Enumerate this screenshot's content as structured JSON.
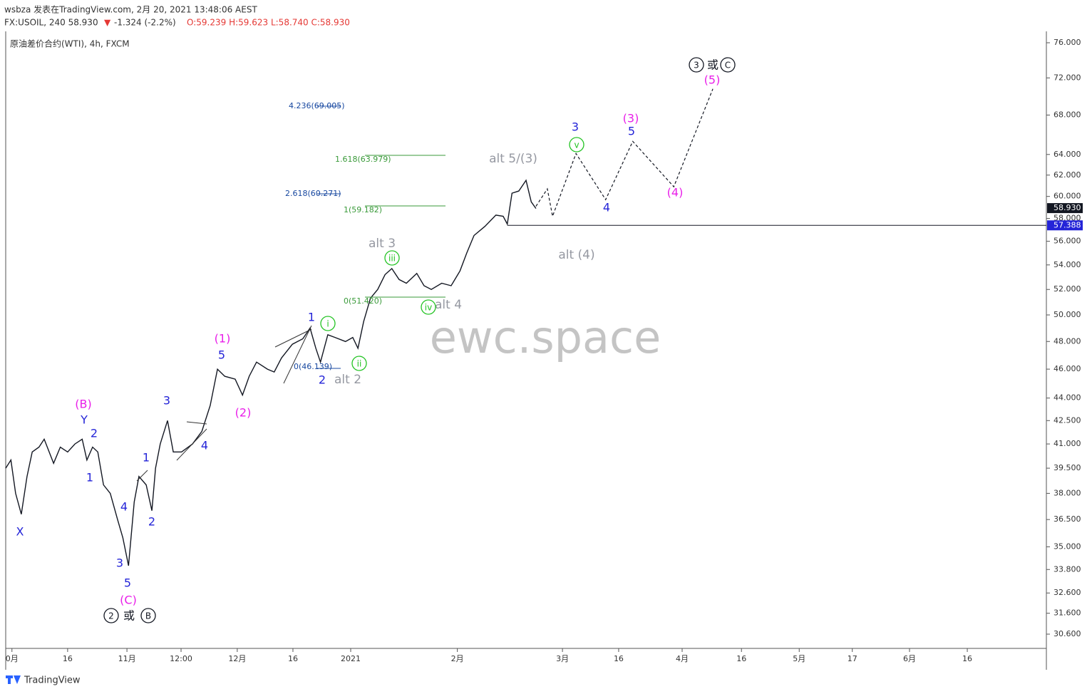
{
  "header": {
    "author_line": "wsbza 发表在TradingView.com, 2月 20, 2021 13:48:06 AEST",
    "symbol": "FX:USOIL, 240 58.930",
    "arrow": "▼",
    "change": "-1.324 (-2.2%)",
    "ohlc": "O:59.239 H:59.623 L:58.740 C:58.930"
  },
  "chart_data": {
    "type": "line",
    "legend": "原油差价合约(WTI), 4h, FXCM",
    "watermark": "ewc.space",
    "log_scale": true,
    "color": "#131722",
    "ylim": [
      30.6,
      76
    ],
    "yticks": [
      {
        "value": 76,
        "label": "76.000"
      },
      {
        "value": 72,
        "label": "72.000"
      },
      {
        "value": 68,
        "label": "68.000"
      },
      {
        "value": 64,
        "label": "64.000"
      },
      {
        "value": 62,
        "label": "62.000"
      },
      {
        "value": 60,
        "label": "60.000"
      },
      {
        "value": 58,
        "label": "58.000"
      },
      {
        "value": 56,
        "label": "56.000"
      },
      {
        "value": 54,
        "label": "54.000"
      },
      {
        "value": 52,
        "label": "52.000"
      },
      {
        "value": 50,
        "label": "50.000"
      },
      {
        "value": 48,
        "label": "48.000"
      },
      {
        "value": 46,
        "label": "46.000"
      },
      {
        "value": 44,
        "label": "44.000"
      },
      {
        "value": 42.5,
        "label": "42.500"
      },
      {
        "value": 41,
        "label": "41.000"
      },
      {
        "value": 39.5,
        "label": "39.500"
      },
      {
        "value": 38,
        "label": "38.000"
      },
      {
        "value": 36.5,
        "label": "36.500"
      },
      {
        "value": 35,
        "label": "35.000"
      },
      {
        "value": 33.8,
        "label": "33.800"
      },
      {
        "value": 32.6,
        "label": "32.600"
      },
      {
        "value": 31.6,
        "label": "31.600"
      },
      {
        "value": 30.6,
        "label": "30.600"
      }
    ],
    "xlim": [
      0,
      200
    ],
    "xticks": [
      {
        "value": 1.2,
        "label": "0月"
      },
      {
        "value": 11.9,
        "label": "16"
      },
      {
        "value": 23.3,
        "label": "11月"
      },
      {
        "value": 33.7,
        "label": "12:00"
      },
      {
        "value": 44.5,
        "label": "12月"
      },
      {
        "value": 55.2,
        "label": "16"
      },
      {
        "value": 66.3,
        "label": "2021"
      },
      {
        "value": 86.8,
        "label": "2月"
      },
      {
        "value": 107,
        "label": "3月"
      },
      {
        "value": 117.8,
        "label": "16"
      },
      {
        "value": 130,
        "label": "4月"
      },
      {
        "value": 141.4,
        "label": "16"
      },
      {
        "value": 152.5,
        "label": "5月"
      },
      {
        "value": 162.7,
        "label": "17"
      },
      {
        "value": 173.7,
        "label": "6月"
      },
      {
        "value": 184.8,
        "label": "16"
      }
    ],
    "series": [
      {
        "name": "USOIL",
        "x": [
          0,
          1,
          1.9,
          3,
          4.1,
          5.1,
          6.4,
          7.4,
          9.2,
          10.5,
          11.9,
          13.3,
          14.7,
          15.6,
          16.7,
          17.7,
          18.8,
          20.1,
          21.5,
          22.5,
          23.6,
          24.7,
          25.6,
          27,
          28.1,
          28.8,
          29.7,
          31.1,
          32.2,
          33.8,
          35.9,
          37.7,
          39.3,
          40.7,
          42.1,
          44.1,
          45.5,
          46.8,
          48.2,
          50.3,
          51.6,
          53,
          55.1,
          57.1,
          58.5,
          59.6,
          60.5,
          61.9,
          63.3,
          65.3,
          66.7,
          67.7,
          68.8,
          70.1,
          71.5,
          72.9,
          74.2,
          75.6,
          77,
          79,
          80.4,
          81.8,
          83.8,
          85.6,
          87.3,
          88.6,
          90,
          92.1,
          94.2,
          95.6,
          96.4,
          97.3,
          98.6,
          100,
          101,
          101.9
        ],
        "values": [
          39.5,
          40,
          38,
          36.8,
          39,
          40.5,
          40.8,
          41.3,
          39.8,
          40.8,
          40.5,
          41,
          41.3,
          40,
          40.8,
          40.5,
          38.5,
          38,
          36.5,
          35.5,
          34,
          37.5,
          39,
          38.5,
          37,
          39.5,
          41,
          42.5,
          40.5,
          40.5,
          41,
          41.8,
          43.5,
          46,
          45.5,
          45.3,
          44.2,
          45.5,
          46.5,
          46,
          45.8,
          46.8,
          47.8,
          48.2,
          49,
          47.5,
          46.5,
          48.5,
          48.3,
          48,
          48.3,
          47.5,
          49.5,
          51.3,
          52,
          53.2,
          53.7,
          52.8,
          52.5,
          53.3,
          52.3,
          52,
          52.5,
          52.3,
          53.5,
          55,
          56.5,
          57.3,
          58.3,
          58.2,
          57.5,
          60.3,
          60.5,
          61.5,
          59.5,
          58.9
        ]
      },
      {
        "name": "projection",
        "x": [
          101.9,
          104.1,
          105.1,
          109.6,
          115.3,
          120.5,
          128.4,
          135.9
        ],
        "values": [
          59.1,
          60.7,
          58.2,
          64.1,
          59.7,
          65.3,
          60.9,
          70.8
        ]
      }
    ],
    "level": 57.388,
    "level_color": "#131722",
    "last_price": {
      "value": 58.93,
      "label": "58.930"
    },
    "annotations": [
      {
        "text": "X",
        "color": "#2424d8"
      },
      {
        "text": "1",
        "color": "#2424d8"
      },
      {
        "text": "2",
        "color": "#2424d8"
      },
      {
        "text": "Y",
        "color": "#2424d8"
      },
      {
        "text": "3",
        "color": "#2424d8"
      },
      {
        "text": "4",
        "color": "#2424d8"
      },
      {
        "text": "5",
        "color": "#2424d8"
      },
      {
        "text": "1",
        "color": "#2424d8"
      },
      {
        "text": "2",
        "color": "#2424d8"
      },
      {
        "text": "3",
        "color": "#2424d8"
      },
      {
        "text": "4",
        "color": "#2424d8"
      },
      {
        "text": "5",
        "color": "#2424d8"
      },
      {
        "text": "1",
        "color": "#2424d8"
      },
      {
        "text": "2",
        "color": "#2424d8"
      },
      {
        "text": "3",
        "color": "#2424d8"
      },
      {
        "text": "4",
        "color": "#2424d8"
      },
      {
        "text": "5",
        "color": "#2424d8"
      },
      {
        "text": "(B)",
        "color": "#e91ee9"
      },
      {
        "text": "(C)",
        "color": "#e91ee9"
      },
      {
        "text": "(1)",
        "color": "#e91ee9"
      },
      {
        "text": "(2)",
        "color": "#e91ee9"
      },
      {
        "text": "(3)",
        "color": "#e91ee9"
      },
      {
        "text": "(4)",
        "color": "#e91ee9"
      },
      {
        "text": "(5)",
        "color": "#e91ee9"
      },
      {
        "text": "alt 2",
        "color": "#9598a1"
      },
      {
        "text": "alt 3",
        "color": "#9598a1"
      },
      {
        "text": "alt 4",
        "color": "#9598a1"
      },
      {
        "text": "alt 5/(3)",
        "color": "#9598a1"
      },
      {
        "text": "alt (4)",
        "color": "#9598a1"
      },
      {
        "text": "i",
        "color": "#22c322",
        "circled": true
      },
      {
        "text": "ii",
        "color": "#22c322",
        "circled": true
      },
      {
        "text": "iii",
        "color": "#22c322",
        "circled": true
      },
      {
        "text": "iv",
        "color": "#22c322",
        "circled": true
      },
      {
        "text": "v",
        "color": "#22c322",
        "circled": true
      },
      {
        "text": "2",
        "color": "#131722",
        "circled": true
      },
      {
        "text": "或",
        "color": "#131722"
      },
      {
        "text": "B",
        "color": "#131722",
        "circled": true
      },
      {
        "text": "3",
        "color": "#131722",
        "circled": true
      },
      {
        "text": "或",
        "color": "#131722"
      },
      {
        "text": "C",
        "color": "#131722",
        "circled": true
      }
    ],
    "fib_labels": [
      {
        "text": "4.236(69.005)",
        "color": "#1848a0"
      },
      {
        "text": "1.618(63.979)",
        "color": "#3a9a3a"
      },
      {
        "text": "2.618(60.271)",
        "color": "#1848a0"
      },
      {
        "text": "1(59.182)",
        "color": "#3a9a3a"
      },
      {
        "text": "0(51.420)",
        "color": "#3a9a3a"
      },
      {
        "text": "0(46.139)",
        "color": "#1848a0"
      }
    ]
  },
  "footer": {
    "brand": "TradingView"
  }
}
